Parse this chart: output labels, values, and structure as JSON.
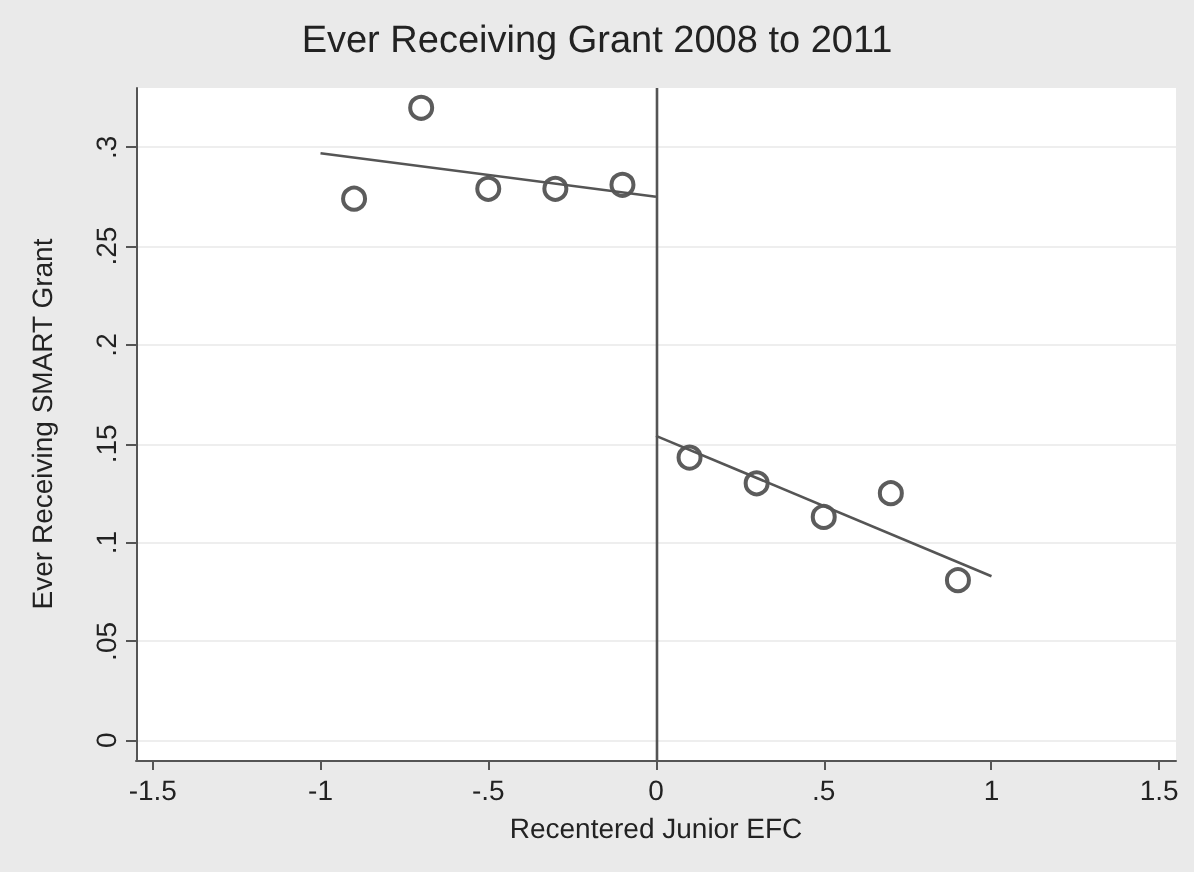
{
  "chart_data": {
    "type": "scatter",
    "title": "Ever Receiving Grant 2008 to 2011",
    "xlabel": "Recentered Junior EFC",
    "ylabel": "Ever Receiving SMART Grant",
    "xlim": [
      -1.55,
      1.55
    ],
    "ylim": [
      -0.01,
      0.33
    ],
    "xticks": [
      {
        "value": -1.5,
        "label": "-1.5"
      },
      {
        "value": -1,
        "label": "-1"
      },
      {
        "value": -0.5,
        "label": "-.5"
      },
      {
        "value": 0,
        "label": "0"
      },
      {
        "value": 0.5,
        "label": ".5"
      },
      {
        "value": 1,
        "label": "1"
      },
      {
        "value": 1.5,
        "label": "1.5"
      }
    ],
    "yticks": [
      {
        "value": 0,
        "label": "0"
      },
      {
        "value": 0.05,
        "label": ".05"
      },
      {
        "value": 0.1,
        "label": ".1"
      },
      {
        "value": 0.15,
        "label": ".15"
      },
      {
        "value": 0.2,
        "label": ".2"
      },
      {
        "value": 0.25,
        "label": ".25"
      },
      {
        "value": 0.3,
        "label": ".3"
      }
    ],
    "grid": "y",
    "marker": "circle",
    "ref_lines": [
      {
        "axis": "x",
        "value": 0,
        "color": "#555555"
      }
    ],
    "series": [
      {
        "color": "#333333",
        "x": [
          -0.9,
          -0.7,
          -0.5,
          -0.3,
          -0.1,
          0.1,
          0.3,
          0.5,
          0.7,
          0.9
        ],
        "values": [
          0.274,
          0.32,
          0.279,
          0.279,
          0.281,
          0.143,
          0.13,
          0.113,
          0.125,
          0.081
        ]
      },
      {
        "type": "line",
        "color": "#555555",
        "marker": "none",
        "line_style": "solid",
        "x": [
          -1,
          0
        ],
        "values": [
          0.297,
          0.275
        ]
      },
      {
        "type": "line",
        "color": "#555555",
        "marker": "none",
        "line_style": "solid",
        "x": [
          0,
          1
        ],
        "values": [
          0.154,
          0.083
        ]
      }
    ]
  }
}
